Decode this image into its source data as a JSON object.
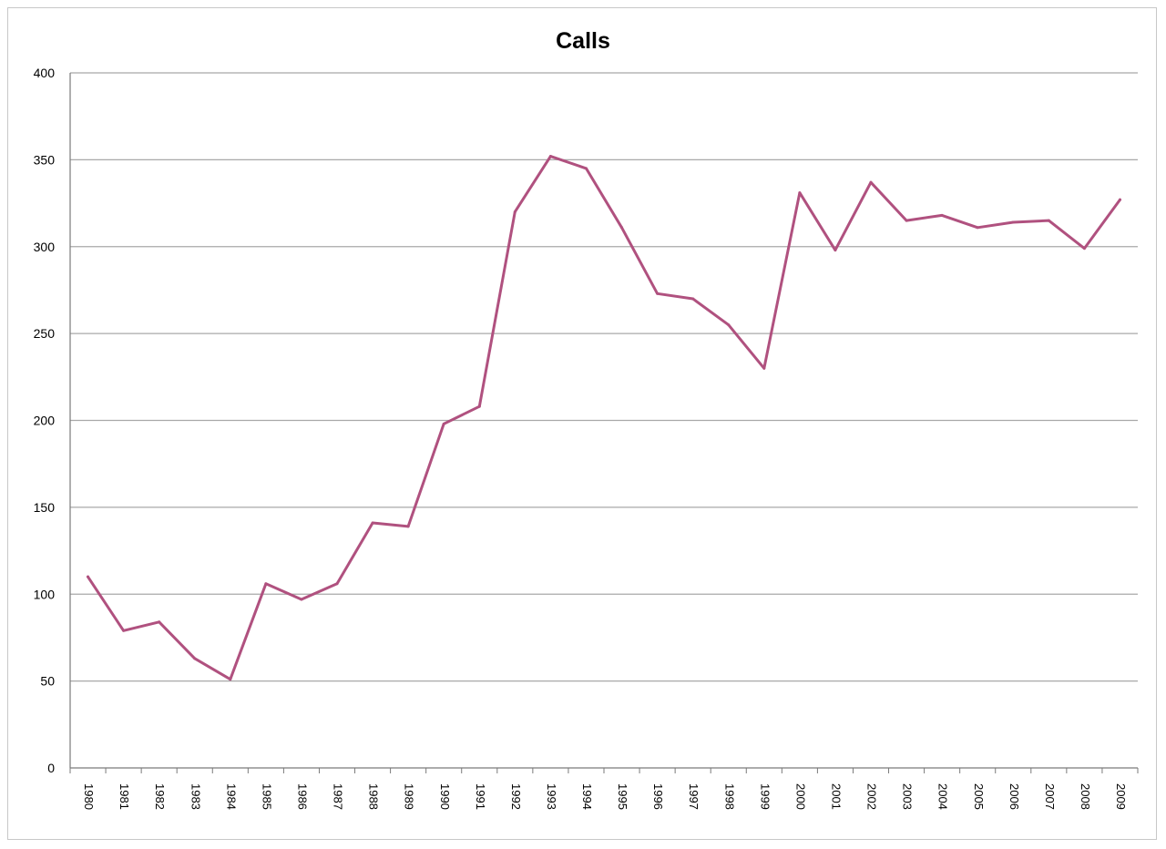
{
  "chart_data": {
    "type": "line",
    "title": "Calls",
    "xlabel": "",
    "ylabel": "",
    "ylim": [
      0,
      400
    ],
    "yticks": [
      0,
      50,
      100,
      150,
      200,
      250,
      300,
      350,
      400
    ],
    "grid": true,
    "legend": "none",
    "categories": [
      "1980",
      "1981",
      "1982",
      "1983",
      "1984",
      "1985",
      "1986",
      "1987",
      "1988",
      "1989",
      "1990",
      "1991",
      "1992",
      "1993",
      "1994",
      "1995",
      "1996",
      "1997",
      "1998",
      "1999",
      "2000",
      "2001",
      "2002",
      "2003",
      "2004",
      "2005",
      "2006",
      "2007",
      "2008",
      "2009"
    ],
    "series": [
      {
        "color": "#b0517f",
        "values": [
          110,
          79,
          84,
          63,
          51,
          106,
          97,
          106,
          141,
          139,
          198,
          208,
          320,
          352,
          345,
          311,
          273,
          270,
          255,
          230,
          331,
          298,
          337,
          315,
          318,
          311,
          314,
          315,
          299,
          327
        ]
      }
    ]
  }
}
